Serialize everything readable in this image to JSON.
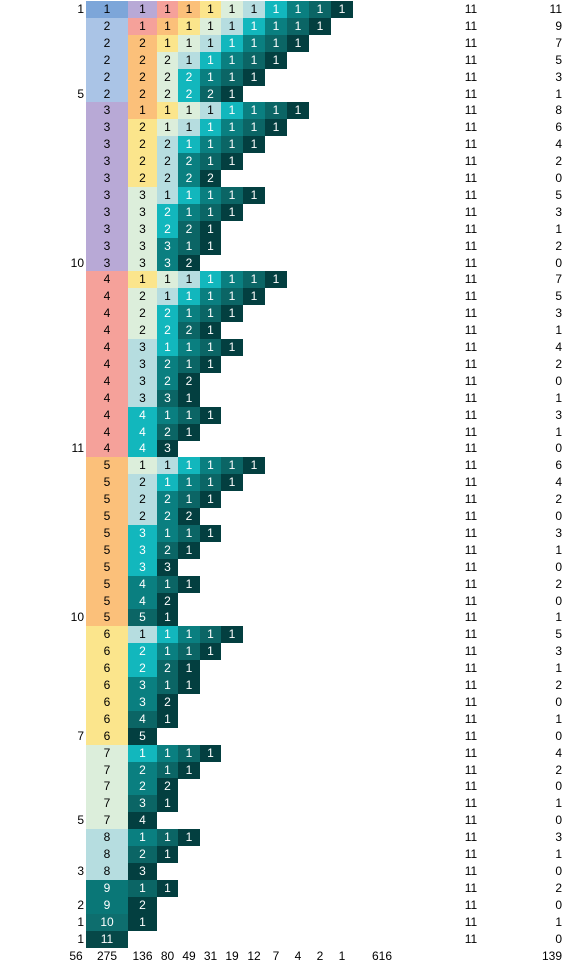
{
  "rows": [
    {
      "g": "1",
      "p": [
        1,
        1,
        1,
        1,
        1,
        1,
        1,
        1,
        1,
        1,
        1
      ],
      "t": "11",
      "r": "11"
    },
    {
      "g": "",
      "p": [
        2,
        1,
        1,
        1,
        1,
        1,
        1,
        1,
        1,
        1
      ],
      "t": "11",
      "r": "9"
    },
    {
      "g": "",
      "p": [
        2,
        2,
        1,
        1,
        1,
        1,
        1,
        1,
        1
      ],
      "t": "11",
      "r": "7"
    },
    {
      "g": "",
      "p": [
        2,
        2,
        2,
        1,
        1,
        1,
        1,
        1
      ],
      "t": "11",
      "r": "5"
    },
    {
      "g": "",
      "p": [
        2,
        2,
        2,
        2,
        1,
        1,
        1
      ],
      "t": "11",
      "r": "3"
    },
    {
      "g": "5",
      "p": [
        2,
        2,
        2,
        2,
        2,
        1
      ],
      "t": "11",
      "r": "1"
    },
    {
      "g": "",
      "p": [
        3,
        1,
        1,
        1,
        1,
        1,
        1,
        1,
        1
      ],
      "t": "11",
      "r": "8"
    },
    {
      "g": "",
      "p": [
        3,
        2,
        1,
        1,
        1,
        1,
        1,
        1
      ],
      "t": "11",
      "r": "6"
    },
    {
      "g": "",
      "p": [
        3,
        2,
        2,
        1,
        1,
        1,
        1
      ],
      "t": "11",
      "r": "4"
    },
    {
      "g": "",
      "p": [
        3,
        2,
        2,
        2,
        1,
        1
      ],
      "t": "11",
      "r": "2"
    },
    {
      "g": "",
      "p": [
        3,
        2,
        2,
        2,
        2
      ],
      "t": "11",
      "r": "0"
    },
    {
      "g": "",
      "p": [
        3,
        3,
        1,
        1,
        1,
        1,
        1
      ],
      "t": "11",
      "r": "5"
    },
    {
      "g": "",
      "p": [
        3,
        3,
        2,
        1,
        1,
        1
      ],
      "t": "11",
      "r": "3"
    },
    {
      "g": "",
      "p": [
        3,
        3,
        2,
        2,
        1
      ],
      "t": "11",
      "r": "1"
    },
    {
      "g": "",
      "p": [
        3,
        3,
        3,
        1,
        1
      ],
      "t": "11",
      "r": "2"
    },
    {
      "g": "10",
      "p": [
        3,
        3,
        3,
        2
      ],
      "t": "11",
      "r": "0"
    },
    {
      "g": "",
      "p": [
        4,
        1,
        1,
        1,
        1,
        1,
        1,
        1
      ],
      "t": "11",
      "r": "7"
    },
    {
      "g": "",
      "p": [
        4,
        2,
        1,
        1,
        1,
        1,
        1
      ],
      "t": "11",
      "r": "5"
    },
    {
      "g": "",
      "p": [
        4,
        2,
        2,
        1,
        1,
        1
      ],
      "t": "11",
      "r": "3"
    },
    {
      "g": "",
      "p": [
        4,
        2,
        2,
        2,
        1
      ],
      "t": "11",
      "r": "1"
    },
    {
      "g": "",
      "p": [
        4,
        3,
        1,
        1,
        1,
        1
      ],
      "t": "11",
      "r": "4"
    },
    {
      "g": "",
      "p": [
        4,
        3,
        2,
        1,
        1
      ],
      "t": "11",
      "r": "2"
    },
    {
      "g": "",
      "p": [
        4,
        3,
        2,
        2
      ],
      "t": "11",
      "r": "0"
    },
    {
      "g": "",
      "p": [
        4,
        3,
        3,
        1
      ],
      "t": "11",
      "r": "1"
    },
    {
      "g": "",
      "p": [
        4,
        4,
        1,
        1,
        1
      ],
      "t": "11",
      "r": "3"
    },
    {
      "g": "",
      "p": [
        4,
        4,
        2,
        1
      ],
      "t": "11",
      "r": "1"
    },
    {
      "g": "11",
      "p": [
        4,
        4,
        3
      ],
      "t": "11",
      "r": "0"
    },
    {
      "g": "",
      "p": [
        5,
        1,
        1,
        1,
        1,
        1,
        1
      ],
      "t": "11",
      "r": "6"
    },
    {
      "g": "",
      "p": [
        5,
        2,
        1,
        1,
        1,
        1
      ],
      "t": "11",
      "r": "4"
    },
    {
      "g": "",
      "p": [
        5,
        2,
        2,
        1,
        1
      ],
      "t": "11",
      "r": "2"
    },
    {
      "g": "",
      "p": [
        5,
        2,
        2,
        2
      ],
      "t": "11",
      "r": "0"
    },
    {
      "g": "",
      "p": [
        5,
        3,
        1,
        1,
        1
      ],
      "t": "11",
      "r": "3"
    },
    {
      "g": "",
      "p": [
        5,
        3,
        2,
        1
      ],
      "t": "11",
      "r": "1"
    },
    {
      "g": "",
      "p": [
        5,
        3,
        3
      ],
      "t": "11",
      "r": "0"
    },
    {
      "g": "",
      "p": [
        5,
        4,
        1,
        1
      ],
      "t": "11",
      "r": "2"
    },
    {
      "g": "",
      "p": [
        5,
        4,
        2
      ],
      "t": "11",
      "r": "0"
    },
    {
      "g": "10",
      "p": [
        5,
        5,
        1
      ],
      "t": "11",
      "r": "1"
    },
    {
      "g": "",
      "p": [
        6,
        1,
        1,
        1,
        1,
        1
      ],
      "t": "11",
      "r": "5"
    },
    {
      "g": "",
      "p": [
        6,
        2,
        1,
        1,
        1
      ],
      "t": "11",
      "r": "3"
    },
    {
      "g": "",
      "p": [
        6,
        2,
        2,
        1
      ],
      "t": "11",
      "r": "1"
    },
    {
      "g": "",
      "p": [
        6,
        3,
        1,
        1
      ],
      "t": "11",
      "r": "2"
    },
    {
      "g": "",
      "p": [
        6,
        3,
        2
      ],
      "t": "11",
      "r": "0"
    },
    {
      "g": "",
      "p": [
        6,
        4,
        1
      ],
      "t": "11",
      "r": "1"
    },
    {
      "g": "7",
      "p": [
        6,
        5
      ],
      "t": "11",
      "r": "0"
    },
    {
      "g": "",
      "p": [
        7,
        1,
        1,
        1,
        1
      ],
      "t": "11",
      "r": "4"
    },
    {
      "g": "",
      "p": [
        7,
        2,
        1,
        1
      ],
      "t": "11",
      "r": "2"
    },
    {
      "g": "",
      "p": [
        7,
        2,
        2
      ],
      "t": "11",
      "r": "0"
    },
    {
      "g": "",
      "p": [
        7,
        3,
        1
      ],
      "t": "11",
      "r": "1"
    },
    {
      "g": "5",
      "p": [
        7,
        4
      ],
      "t": "11",
      "r": "0"
    },
    {
      "g": "",
      "p": [
        8,
        1,
        1,
        1
      ],
      "t": "11",
      "r": "3"
    },
    {
      "g": "",
      "p": [
        8,
        2,
        1
      ],
      "t": "11",
      "r": "1"
    },
    {
      "g": "3",
      "p": [
        8,
        3
      ],
      "t": "11",
      "r": "0"
    },
    {
      "g": "",
      "p": [
        9,
        1,
        1
      ],
      "t": "11",
      "r": "2"
    },
    {
      "g": "2",
      "p": [
        9,
        2
      ],
      "t": "11",
      "r": "0"
    },
    {
      "g": "1",
      "p": [
        10,
        1
      ],
      "t": "11",
      "r": "1"
    },
    {
      "g": "1",
      "p": [
        11
      ],
      "t": "11",
      "r": "0"
    }
  ],
  "footer": {
    "group_total": "56",
    "column_counts": [
      "275",
      "136",
      "80",
      "49",
      "31",
      "19",
      "12",
      "7",
      "4",
      "2",
      "1"
    ],
    "grand_total": "616",
    "remainder_total": "139"
  },
  "colors": {
    "first_part": {
      "1": "#7da6d9",
      "2": "#aac4e6",
      "3": "#b8a9d6",
      "4": "#f5a19a",
      "5": "#fbc07a",
      "6": "#fbe58c",
      "7": "#dceedb",
      "8": "#b6dde0",
      "9": "#0a7777",
      "10": "#0e6e6e",
      "11": "#064848"
    },
    "by_remaining": {
      "10": "#7da6d9",
      "9": "#b8a9d6",
      "8": "#f5a19a",
      "7": "#fbc07a",
      "6": "#fbe58c",
      "5": "#dceedb",
      "4": "#b6dde0",
      "3": "#12b7bd",
      "2": "#0a7f80",
      "1": "#0b6565",
      "0": "#033f40"
    }
  }
}
